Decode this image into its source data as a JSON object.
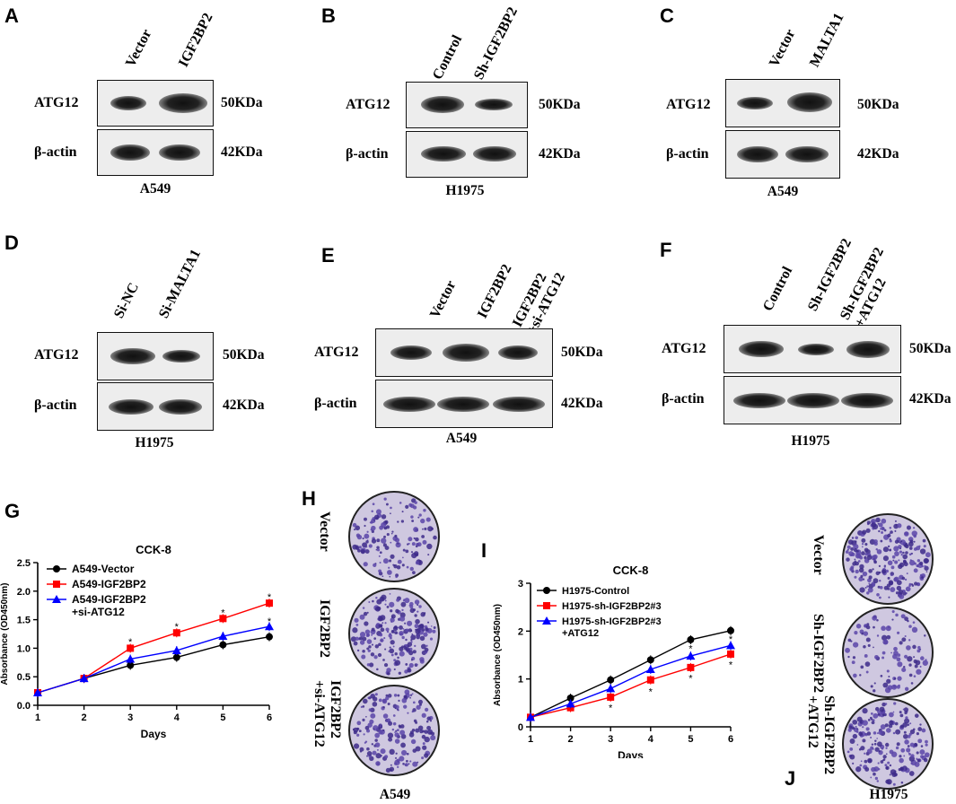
{
  "panels": {
    "A": {
      "letter": "A",
      "lanes": [
        "Vector",
        "IGF2BP2"
      ],
      "row1": "ATG12",
      "row1_kda": "50KDa",
      "row2": "β-actin",
      "row2_kda": "42KDa",
      "cell": "A549"
    },
    "B": {
      "letter": "B",
      "lanes": [
        "Control",
        "Sh-IGF2BP2"
      ],
      "row1": "ATG12",
      "row1_kda": "50KDa",
      "row2": "β-actin",
      "row2_kda": "42KDa",
      "cell": "H1975"
    },
    "C": {
      "letter": "C",
      "lanes": [
        "Vector",
        "MALTA1"
      ],
      "row1": "ATG12",
      "row1_kda": "50KDa",
      "row2": "β-actin",
      "row2_kda": "42KDa",
      "cell": "A549"
    },
    "D": {
      "letter": "D",
      "lanes": [
        "Si-NC",
        "Si-MALTA1"
      ],
      "row1": "ATG12",
      "row1_kda": "50KDa",
      "row2": "β-actin",
      "row2_kda": "42KDa",
      "cell": "H1975"
    },
    "E": {
      "letter": "E",
      "lanes": [
        "Vector",
        "IGF2BP2",
        "IGF2BP2",
        "+si-ATG12"
      ],
      "row1": "ATG12",
      "row1_kda": "50KDa",
      "row2": "β-actin",
      "row2_kda": "42KDa",
      "cell": "A549"
    },
    "F": {
      "letter": "F",
      "lanes": [
        "Control",
        "Sh-IGF2BP2",
        "Sh-IGF2BP2",
        "+ATG12"
      ],
      "row1": "ATG12",
      "row1_kda": "50KDa",
      "row2": "β-actin",
      "row2_kda": "42KDa",
      "cell": "H1975"
    },
    "G": {
      "letter": "G"
    },
    "H": {
      "letter": "H",
      "labels": [
        "Vector",
        "IGF2BP2",
        "IGF2BP2",
        "+si-ATG12"
      ],
      "cell": "A549"
    },
    "I": {
      "letter": "I"
    },
    "J": {
      "letter": "J",
      "labels": [
        "Vector",
        "Sh-IGF2BP2",
        "Sh-IGF2BP2",
        "+ATG12"
      ],
      "cell": "H1975"
    }
  },
  "chart_data": [
    {
      "type": "line",
      "panel": "G",
      "title": "CCK-8",
      "xlabel": "Days",
      "ylabel": "Absorbance (OD450nm)",
      "x": [
        1,
        2,
        3,
        4,
        5,
        6
      ],
      "xlim": [
        1,
        6
      ],
      "ylim": [
        0,
        2.5
      ],
      "yticks": [
        "0.0",
        "0.5",
        "1.0",
        "1.5",
        "2.0",
        "2.5"
      ],
      "xticks": [
        "1",
        "2",
        "3",
        "4",
        "5",
        "6"
      ],
      "legend_position": "top-left",
      "series": [
        {
          "name": "A549-Vector",
          "color": "#000000",
          "marker": "circle",
          "values": [
            0.22,
            0.47,
            0.7,
            0.84,
            1.06,
            1.2
          ]
        },
        {
          "name": "A549-IGF2BP2",
          "color": "#ff0000",
          "marker": "square",
          "values": [
            0.22,
            0.47,
            1.0,
            1.27,
            1.52,
            1.79
          ]
        },
        {
          "name": "A549-IGF2BP2",
          "name2": "+si-ATG12",
          "color": "#0000ff",
          "marker": "triangle",
          "values": [
            0.22,
            0.47,
            0.81,
            0.96,
            1.21,
            1.38
          ]
        }
      ],
      "significance": [
        {
          "x": 3,
          "y": 1.12,
          "text": "*"
        },
        {
          "x": 4,
          "y": 1.38,
          "text": "*"
        },
        {
          "x": 5,
          "y": 1.63,
          "text": "*"
        },
        {
          "x": 6,
          "y": 1.9,
          "text": "*"
        },
        {
          "x": 6,
          "y": 1.48,
          "text": "*"
        }
      ]
    },
    {
      "type": "line",
      "panel": "I",
      "title": "CCK-8",
      "xlabel": "Days",
      "ylabel": "Absorbance (OD450nm)",
      "x": [
        1,
        2,
        3,
        4,
        5,
        6
      ],
      "xlim": [
        1,
        6
      ],
      "ylim": [
        0,
        3
      ],
      "yticks": [
        "0",
        "1",
        "2",
        "3"
      ],
      "xticks": [
        "1",
        "2",
        "3",
        "4",
        "5",
        "6"
      ],
      "legend_position": "top-left",
      "series": [
        {
          "name": "H1975-Control",
          "color": "#000000",
          "marker": "circle",
          "values": [
            0.2,
            0.6,
            0.98,
            1.4,
            1.82,
            2.01
          ]
        },
        {
          "name": "H1975-sh-IGF2BP2#3",
          "color": "#ff0000",
          "marker": "square",
          "values": [
            0.2,
            0.4,
            0.62,
            0.98,
            1.24,
            1.52
          ]
        },
        {
          "name": "H1975-sh-IGF2BP2#3",
          "name2": "+ATG12",
          "color": "#0000ff",
          "marker": "triangle",
          "values": [
            0.2,
            0.48,
            0.8,
            1.2,
            1.48,
            1.7
          ]
        }
      ],
      "significance": [
        {
          "x": 3,
          "y": 0.4,
          "text": "*"
        },
        {
          "x": 4,
          "y": 0.74,
          "text": "*"
        },
        {
          "x": 5,
          "y": 1.02,
          "text": "*"
        },
        {
          "x": 5,
          "y": 1.64,
          "text": "*"
        },
        {
          "x": 6,
          "y": 1.3,
          "text": "*"
        },
        {
          "x": 6,
          "y": 1.84,
          "text": "*"
        }
      ]
    }
  ]
}
